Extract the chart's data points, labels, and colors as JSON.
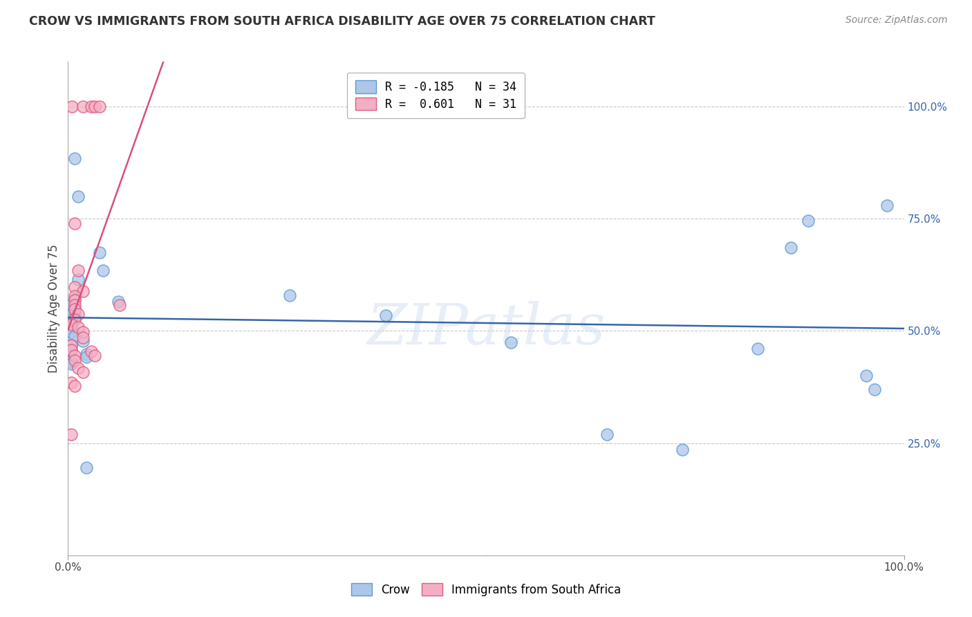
{
  "title": "CROW VS IMMIGRANTS FROM SOUTH AFRICA DISABILITY AGE OVER 75 CORRELATION CHART",
  "source": "Source: ZipAtlas.com",
  "ylabel": "Disability Age Over 75",
  "xlim": [
    0.0,
    1.0
  ],
  "ylim": [
    0.0,
    1.1
  ],
  "ytick_labels": [
    "25.0%",
    "50.0%",
    "75.0%",
    "100.0%"
  ],
  "ytick_positions": [
    0.25,
    0.5,
    0.75,
    1.0
  ],
  "crow_color": "#aec6e8",
  "crow_edge_color": "#5b9bd5",
  "immigrant_color": "#f4afc4",
  "immigrant_edge_color": "#e05a80",
  "crow_line_color": "#3465a8",
  "immigrant_line_color": "#d94f7a",
  "watermark": "ZIPatlas",
  "crow_R": -0.185,
  "crow_N": 34,
  "immigrant_R": 0.601,
  "immigrant_N": 31,
  "crow_points": [
    [
      0.008,
      0.885
    ],
    [
      0.022,
      0.195
    ],
    [
      0.012,
      0.8
    ],
    [
      0.038,
      0.675
    ],
    [
      0.042,
      0.635
    ],
    [
      0.012,
      0.615
    ],
    [
      0.008,
      0.57
    ],
    [
      0.06,
      0.565
    ],
    [
      0.004,
      0.558
    ],
    [
      0.008,
      0.548
    ],
    [
      0.008,
      0.538
    ],
    [
      0.008,
      0.528
    ],
    [
      0.004,
      0.518
    ],
    [
      0.004,
      0.508
    ],
    [
      0.004,
      0.498
    ],
    [
      0.008,
      0.488
    ],
    [
      0.018,
      0.478
    ],
    [
      0.004,
      0.468
    ],
    [
      0.004,
      0.458
    ],
    [
      0.022,
      0.448
    ],
    [
      0.022,
      0.442
    ],
    [
      0.004,
      0.432
    ],
    [
      0.004,
      0.426
    ],
    [
      0.265,
      0.58
    ],
    [
      0.38,
      0.535
    ],
    [
      0.53,
      0.475
    ],
    [
      0.645,
      0.27
    ],
    [
      0.735,
      0.235
    ],
    [
      0.825,
      0.46
    ],
    [
      0.865,
      0.685
    ],
    [
      0.885,
      0.745
    ],
    [
      0.955,
      0.4
    ],
    [
      0.965,
      0.37
    ],
    [
      0.98,
      0.78
    ]
  ],
  "immigrant_points": [
    [
      0.005,
      1.0
    ],
    [
      0.018,
      1.0
    ],
    [
      0.028,
      1.0
    ],
    [
      0.032,
      1.0
    ],
    [
      0.038,
      1.0
    ],
    [
      0.008,
      0.74
    ],
    [
      0.012,
      0.635
    ],
    [
      0.008,
      0.598
    ],
    [
      0.018,
      0.588
    ],
    [
      0.008,
      0.578
    ],
    [
      0.008,
      0.568
    ],
    [
      0.008,
      0.558
    ],
    [
      0.008,
      0.548
    ],
    [
      0.012,
      0.538
    ],
    [
      0.008,
      0.525
    ],
    [
      0.004,
      0.515
    ],
    [
      0.012,
      0.508
    ],
    [
      0.018,
      0.498
    ],
    [
      0.018,
      0.485
    ],
    [
      0.004,
      0.468
    ],
    [
      0.004,
      0.458
    ],
    [
      0.008,
      0.445
    ],
    [
      0.008,
      0.435
    ],
    [
      0.012,
      0.418
    ],
    [
      0.018,
      0.408
    ],
    [
      0.004,
      0.385
    ],
    [
      0.008,
      0.378
    ],
    [
      0.004,
      0.27
    ],
    [
      0.028,
      0.455
    ],
    [
      0.032,
      0.445
    ],
    [
      0.062,
      0.558
    ]
  ]
}
